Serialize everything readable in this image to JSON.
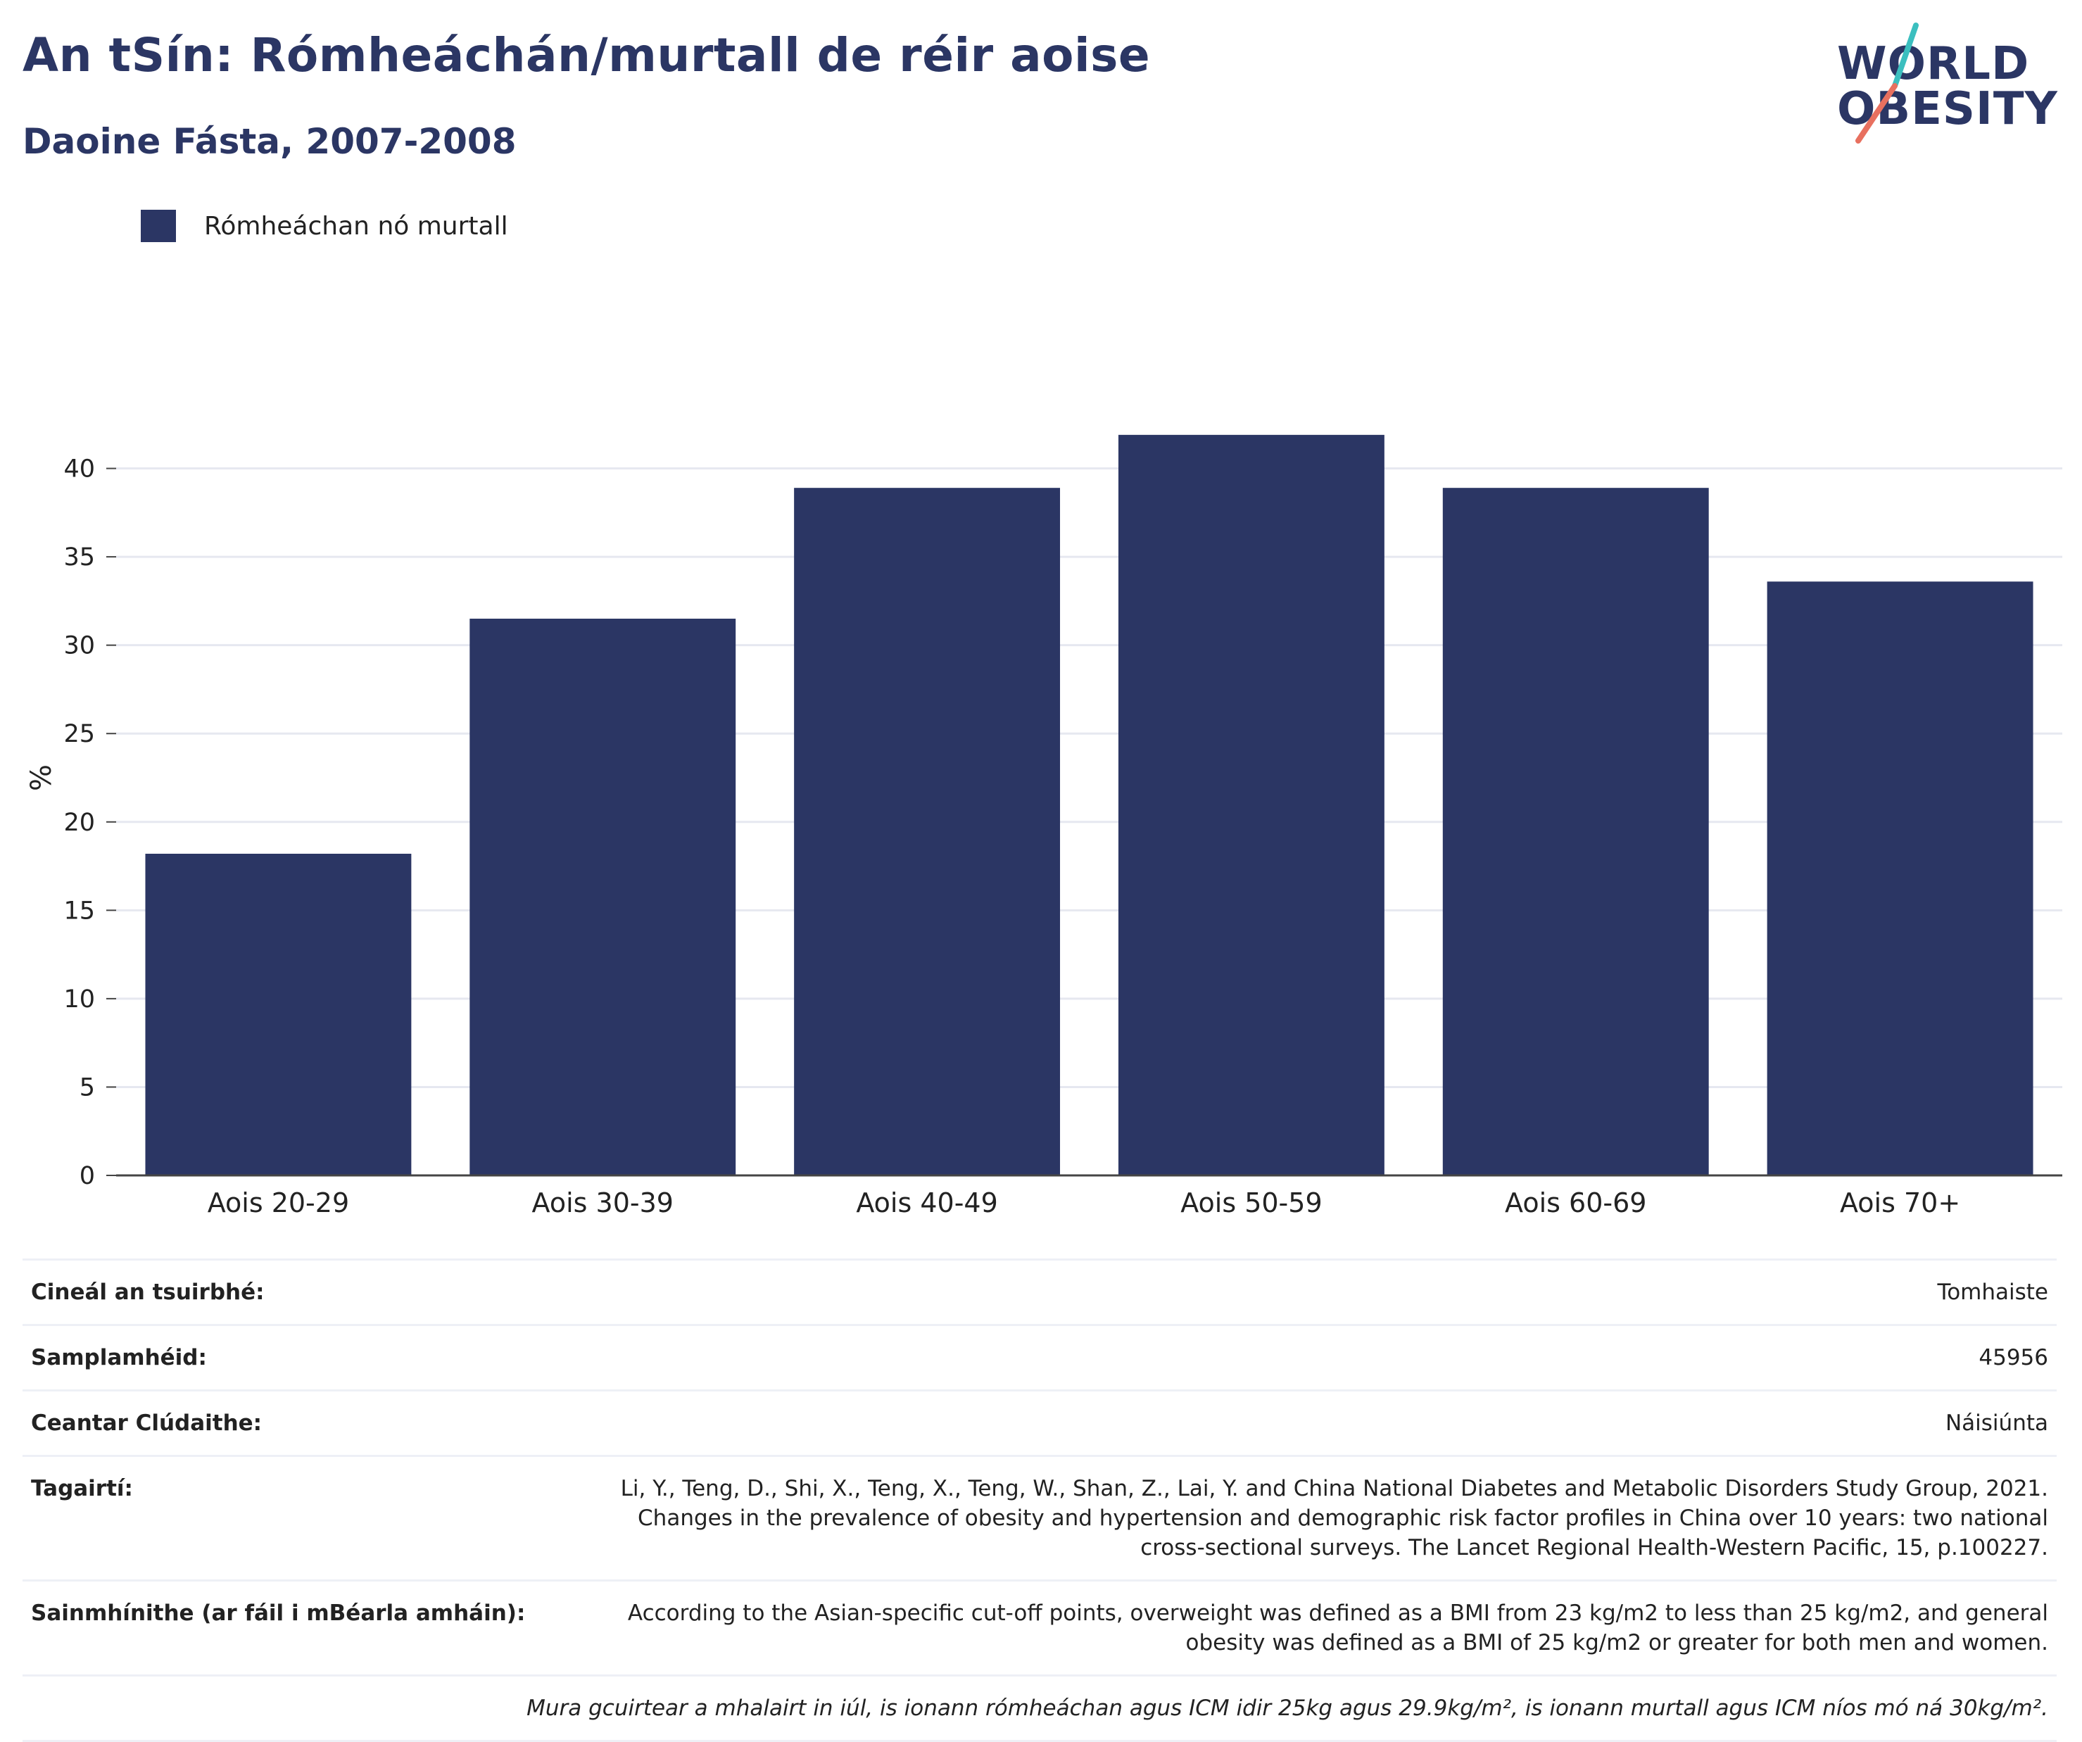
{
  "header": {
    "title": "An tSín: Rómheáchán/murtall de réir aoise",
    "subtitle": "Daoine Fásta, 2007-2008"
  },
  "logo": {
    "line1": "WORLD",
    "line2": "OBESITY",
    "colors": {
      "text": "#2b3664",
      "slash_top": "#3bbfbf",
      "slash_bottom": "#e8705f"
    }
  },
  "legend": {
    "label": "Rómheáchan nó murtall",
    "color": "#2b3664"
  },
  "chart_data": {
    "type": "bar",
    "categories": [
      "Aois 20-29",
      "Aois 30-39",
      "Aois 40-49",
      "Aois 50-59",
      "Aois 60-69",
      "Aois 70+"
    ],
    "series": [
      {
        "name": "Rómheáchan nó murtall",
        "values": [
          18.2,
          31.5,
          38.9,
          41.9,
          38.9,
          33.6
        ]
      }
    ],
    "ylabel": "%",
    "ylim": [
      0,
      45
    ],
    "yticks": [
      0,
      5,
      10,
      15,
      20,
      25,
      30,
      35,
      40
    ],
    "grid": true,
    "bar_color": "#2b3664",
    "grid_color": "#e6e8f0",
    "legend_position": "top-left"
  },
  "meta": {
    "rows": [
      {
        "key": "Cineál an tsuirbhé:",
        "value": "Tomhaiste"
      },
      {
        "key": "Samplamhéid:",
        "value": "45956"
      },
      {
        "key": "Ceantar Clúdaithe:",
        "value": "Náisiúnta"
      },
      {
        "key": "Tagairtí:",
        "value": "Li, Y., Teng, D., Shi, X., Teng, X., Teng, W., Shan, Z., Lai, Y. and China National Diabetes and Metabolic Disorders Study Group, 2021. Changes in the prevalence of obesity and hypertension and demographic risk factor profiles in China over 10 years: two national cross-sectional surveys. The Lancet Regional Health-Western Pacific, 15, p.100227."
      },
      {
        "key": "Sainmhínithe (ar fáil i mBéarla amháin):",
        "value": "According to the Asian-specific cut-off points, overweight was defined as a BMI from 23 kg/m2 to less than 25 kg/m2, and general obesity was defined as a BMI of 25 kg/m2 or greater for both men and women."
      }
    ],
    "note": "Mura gcuirtear a mhalairt in iúl, is ionann rómheáchan agus ICM idir 25kg agus 29.9kg/m², is ionann murtall agus ICM níos mó ná 30kg/m²."
  }
}
